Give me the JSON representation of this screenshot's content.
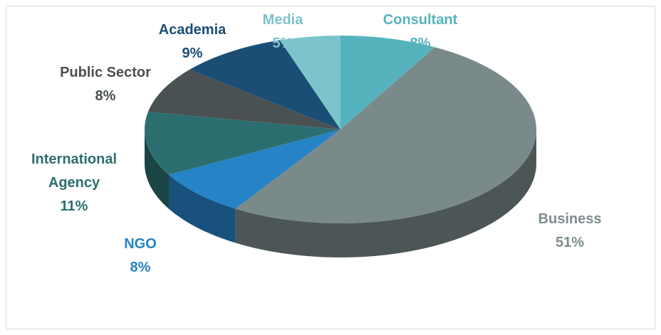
{
  "chart_data": {
    "type": "pie",
    "categories": [
      "Consultant",
      "Business",
      "NGO",
      "International Agency",
      "Public Sector",
      "Academia",
      "Media"
    ],
    "values": [
      8,
      51,
      8,
      11,
      8,
      9,
      5
    ],
    "value_labels": [
      "8%",
      "51%",
      "8%",
      "11%",
      "8%",
      "9%",
      "5%"
    ],
    "colors": [
      "#56b3be",
      "#7a8a8a",
      "#2683c6",
      "#2c6e70",
      "#4a5153",
      "#1b4e75",
      "#7cc4cc"
    ],
    "label_colors": [
      "#56b3be",
      "#7f8c8d",
      "#2683c6",
      "#2c6e70",
      "#4a4f52",
      "#1b4e75",
      "#7cc4cc"
    ]
  }
}
